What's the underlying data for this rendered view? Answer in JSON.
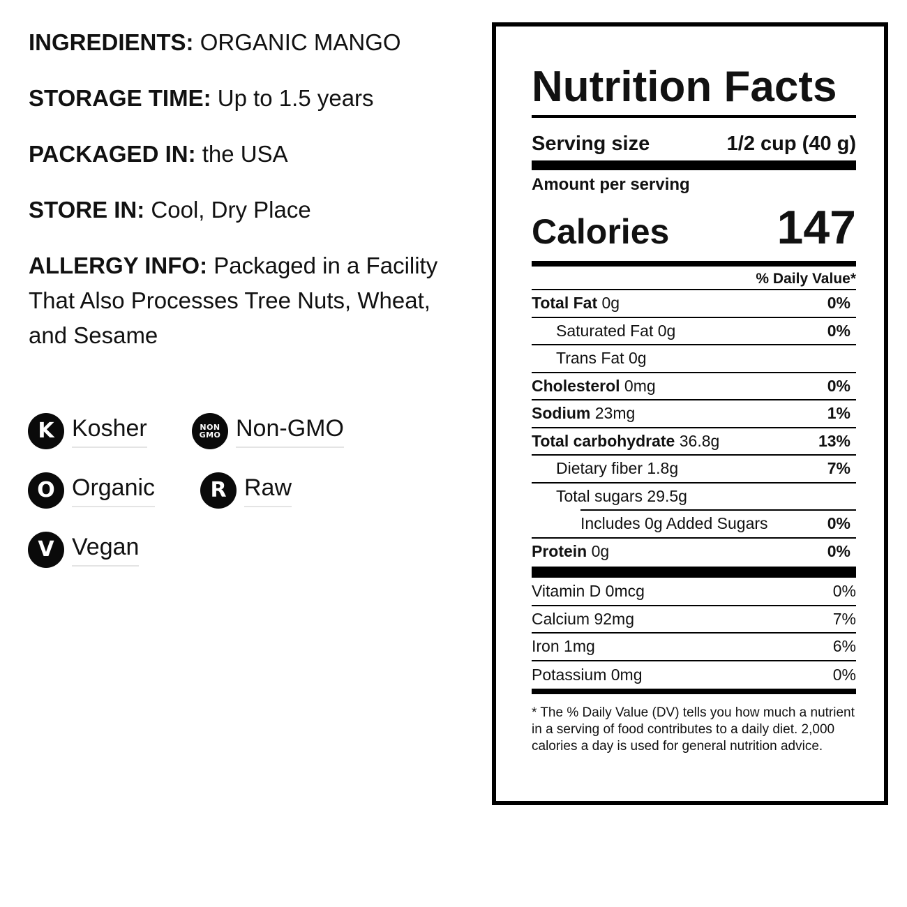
{
  "info": {
    "ingredients": {
      "label": "INGREDIENTS:",
      "value": "ORGANIC MANGO"
    },
    "storage_time": {
      "label": "STORAGE TIME:",
      "value": "Up to 1.5 years"
    },
    "packaged_in": {
      "label": "PACKAGED IN:",
      "value": "the USA"
    },
    "store_in": {
      "label": "STORE IN:",
      "value": "Cool, Dry Place"
    },
    "allergy": {
      "label": "ALLERGY INFO:",
      "value": "Packaged in a Facility That Also Processes Tree Nuts, Wheat, and Sesame"
    }
  },
  "badges": [
    {
      "icon_text": "K",
      "icon": "kosher-icon",
      "label": "Kosher"
    },
    {
      "icon_text_top": "NON",
      "icon_text_bottom": "GMO",
      "icon": "non-gmo-icon",
      "label": "Non-GMO"
    },
    {
      "icon_text": "O",
      "icon": "organic-icon",
      "label": "Organic"
    },
    {
      "icon_text": "R",
      "icon": "raw-icon",
      "label": "Raw"
    },
    {
      "icon_text": "V",
      "icon": "vegan-icon",
      "label": "Vegan"
    }
  ],
  "nutrition": {
    "title": "Nutrition Facts",
    "serving_size_label": "Serving size",
    "serving_size_value": "1/2 cup (40 g)",
    "amount_per_serving": "Amount per serving",
    "calories_label": "Calories",
    "calories_value": "147",
    "daily_value_header": "% Daily Value*",
    "nutrients": [
      {
        "name": "Total Fat",
        "amount": "0g",
        "dv": "0%"
      },
      {
        "name": "Saturated Fat",
        "amount": "0g",
        "dv": "0%"
      },
      {
        "name": "Trans Fat",
        "amount": "0g",
        "dv": ""
      },
      {
        "name": "Cholesterol",
        "amount": "0mg",
        "dv": "0%"
      },
      {
        "name": "Sodium",
        "amount": "23mg",
        "dv": "1%"
      },
      {
        "name": "Total carbohydrate",
        "amount": "36.8g",
        "dv": "13%"
      },
      {
        "name": "Dietary fiber",
        "amount": "1.8g",
        "dv": "7%"
      },
      {
        "name": "Total sugars",
        "amount": "29.5g",
        "dv": ""
      },
      {
        "name": "Includes 0g Added Sugars",
        "amount": "",
        "dv": "0%"
      },
      {
        "name": "Protein",
        "amount": "0g",
        "dv": "0%"
      }
    ],
    "vitamins": [
      {
        "name": "Vitamin D",
        "amount": "0mcg",
        "dv": "0%"
      },
      {
        "name": "Calcium",
        "amount": "92mg",
        "dv": "7%"
      },
      {
        "name": "Iron",
        "amount": "1mg",
        "dv": "6%"
      },
      {
        "name": "Potassium",
        "amount": "0mg",
        "dv": "0%"
      }
    ],
    "footnote": "* The % Daily Value (DV) tells you how much a nutrient in a serving of food contributes to a daily diet. 2,000 calories a day is used for general nutrition advice."
  }
}
